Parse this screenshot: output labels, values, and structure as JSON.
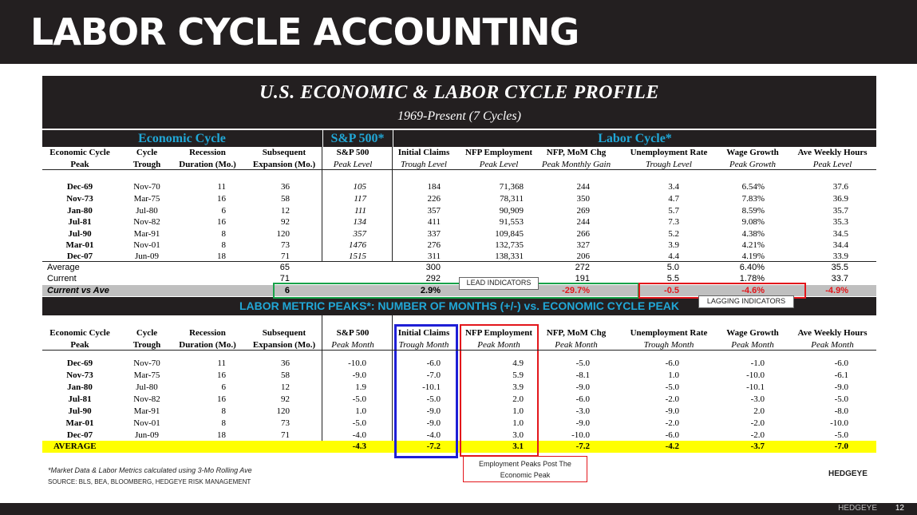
{
  "page": {
    "title": "LABOR CYCLE ACCOUNTING",
    "footer_brand": "HEDGEYE",
    "page_number": "12"
  },
  "table_title": "U.S. ECONOMIC & LABOR CYCLE PROFILE",
  "table_subtitle": "1969-Present (7 Cycles)",
  "bands": {
    "economic": "Economic Cycle",
    "sp": "S&P 500*",
    "labor": "Labor Cycle*"
  },
  "section2_title": "LABOR METRIC PEAKS*:  NUMBER OF MONTHS (+/-) vs. ECONOMIC CYCLE PEAK",
  "header1_top": [
    "Economic Cycle",
    "Cycle",
    "Recession",
    "Subsequent",
    "S&P 500",
    "Initial Claims",
    "NFP Employment",
    "NFP, MoM Chg",
    "Unemployment Rate",
    "Wage Growth",
    "Ave Weekly Hours"
  ],
  "header1_bottom": [
    "Peak",
    "Trough",
    "Duration (Mo.)",
    "Expansion (Mo.)",
    "Peak Level",
    "Trough Level",
    "Peak Level",
    "Peak Monthly Gain",
    "Trough Level",
    "Peak Growth",
    "Peak Level"
  ],
  "rows1": [
    [
      "Dec-69",
      "Nov-70",
      "11",
      "36",
      "105",
      "184",
      "71,368",
      "244",
      "3.4",
      "6.54%",
      "37.6"
    ],
    [
      "Nov-73",
      "Mar-75",
      "16",
      "58",
      "117",
      "226",
      "78,311",
      "350",
      "4.7",
      "7.83%",
      "36.9"
    ],
    [
      "Jan-80",
      "Jul-80",
      "6",
      "12",
      "111",
      "357",
      "90,909",
      "269",
      "5.7",
      "8.59%",
      "35.7"
    ],
    [
      "Jul-81",
      "Nov-82",
      "16",
      "92",
      "134",
      "411",
      "91,553",
      "244",
      "7.3",
      "9.08%",
      "35.3"
    ],
    [
      "Jul-90",
      "Mar-91",
      "8",
      "120",
      "357",
      "337",
      "109,845",
      "266",
      "5.2",
      "4.38%",
      "34.5"
    ],
    [
      "Mar-01",
      "Nov-01",
      "8",
      "73",
      "1476",
      "276",
      "132,735",
      "327",
      "3.9",
      "4.21%",
      "34.4"
    ],
    [
      "Dec-07",
      "Jun-09",
      "18",
      "71",
      "1515",
      "311",
      "138,331",
      "206",
      "4.4",
      "4.19%",
      "33.9"
    ]
  ],
  "average_row": {
    "label": "Average",
    "expansion": "65",
    "claims": "300",
    "nfp_mom": "272",
    "unemployment": "5.0",
    "wage": "6.40%",
    "hours": "35.5"
  },
  "current_row": {
    "label": "Current",
    "expansion": "71",
    "claims": "292",
    "nfp_mom": "191",
    "unemployment": "5.5",
    "wage": "1.78%",
    "hours": "33.7"
  },
  "current_vs_ave": {
    "label": "Current vs Ave",
    "expansion": "6",
    "claims": "2.9%",
    "nfp_mom": "-29.7%",
    "unemployment": "-0.5",
    "wage": "-4.6%",
    "hours": "-4.9%"
  },
  "header2_top": [
    "Economic Cycle",
    "Cycle",
    "Recession",
    "Subsequent",
    "S&P 500",
    "Initial Claims",
    "NFP Employment",
    "NFP, MoM Chg",
    "Unemployment Rate",
    "Wage Growth",
    "Ave Weekly Hours"
  ],
  "header2_bottom": [
    "Peak",
    "Trough",
    "Duration (Mo.)",
    "Expansion (Mo.)",
    "Peak Month",
    "Trough Month",
    "Peak Month",
    "Peak Month",
    "Trough Month",
    "Peak Month",
    "Peak Month"
  ],
  "rows2": [
    [
      "Dec-69",
      "Nov-70",
      "11",
      "36",
      "-10.0",
      "-6.0",
      "4.9",
      "-5.0",
      "-6.0",
      "-1.0",
      "-6.0"
    ],
    [
      "Nov-73",
      "Mar-75",
      "16",
      "58",
      "-9.0",
      "-7.0",
      "5.9",
      "-8.1",
      "1.0",
      "-10.0",
      "-6.1"
    ],
    [
      "Jan-80",
      "Jul-80",
      "6",
      "12",
      "1.9",
      "-10.1",
      "3.9",
      "-9.0",
      "-5.0",
      "-10.1",
      "-9.0"
    ],
    [
      "Jul-81",
      "Nov-82",
      "16",
      "92",
      "-5.0",
      "-5.0",
      "2.0",
      "-6.0",
      "-2.0",
      "-3.0",
      "-5.0"
    ],
    [
      "Jul-90",
      "Mar-91",
      "8",
      "120",
      "1.0",
      "-9.0",
      "1.0",
      "-3.0",
      "-9.0",
      "2.0",
      "-8.0"
    ],
    [
      "Mar-01",
      "Nov-01",
      "8",
      "73",
      "-5.0",
      "-9.0",
      "1.0",
      "-9.0",
      "-2.0",
      "-2.0",
      "-10.0"
    ],
    [
      "Dec-07",
      "Jun-09",
      "18",
      "71",
      "-4.0",
      "-4.0",
      "3.0",
      "-10.0",
      "-6.0",
      "-2.0",
      "-5.0"
    ]
  ],
  "average2": {
    "label": "AVERAGE",
    "values": [
      "-4.3",
      "-7.2",
      "3.1",
      "-7.2",
      "-4.2",
      "-3.7",
      "-7.0"
    ]
  },
  "callouts": {
    "lead": "LEAD INDICATORS",
    "lagging": "LAGGING INDICATORS",
    "employment": "Employment Peaks Post The Economic Peak"
  },
  "footnote": "*Market Data & Labor Metrics calculated using 3-Mo Rolling Ave",
  "source": "SOURCE:  BLS, BEA, BLOOMBERG, HEDGEYE RISK MANAGEMENT",
  "logo": "HEDGEYE",
  "colors": {
    "band_text": "#21a7d6",
    "dark": "#231f20",
    "average_highlight": "#ffff00",
    "negative": "#e3161b",
    "lead_box": "#18a34a",
    "lag_box": "#e3161b",
    "claims_box": "#1f1fd6"
  }
}
